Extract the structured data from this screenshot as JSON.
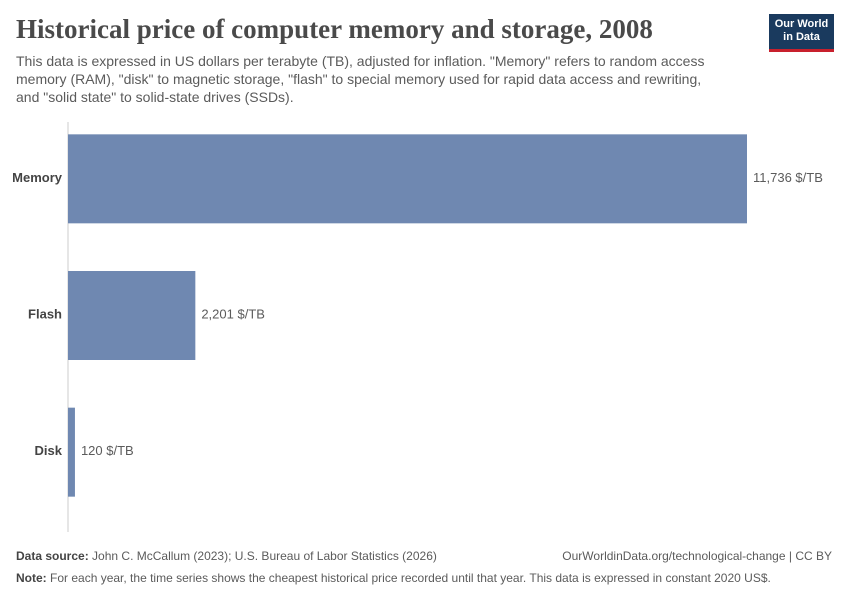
{
  "chart_data": {
    "type": "bar",
    "orientation": "horizontal",
    "title": "Historical price of computer memory and storage, 2008",
    "subtitle": [
      "This data is expressed in US dollars per terabyte (TB), adjusted for inflation. \"Memory\" refers to random access",
      "memory (RAM), \"disk\" to magnetic storage, \"flash\" to special memory used for rapid data access and rewriting,",
      "and \"solid state\" to solid-state drives (SSDs)."
    ],
    "categories": [
      "Memory",
      "Flash",
      "Disk"
    ],
    "values": [
      11736,
      2201,
      120
    ],
    "value_labels": [
      "11,736 $/TB",
      "2,201 $/TB",
      "120 $/TB"
    ],
    "color": "#6f88b1",
    "logo": [
      "Our World",
      "in Data"
    ],
    "source_label": "Data source:",
    "source": "John C. McCallum (2023); U.S. Bureau of Labor Statistics (2026)",
    "url": "OurWorldinData.org/technological-change | CC BY",
    "note_label": "Note:",
    "note": "For each year, the time series shows the cheapest historical price recorded until that year. This data is expressed in constant 2020 US$."
  }
}
